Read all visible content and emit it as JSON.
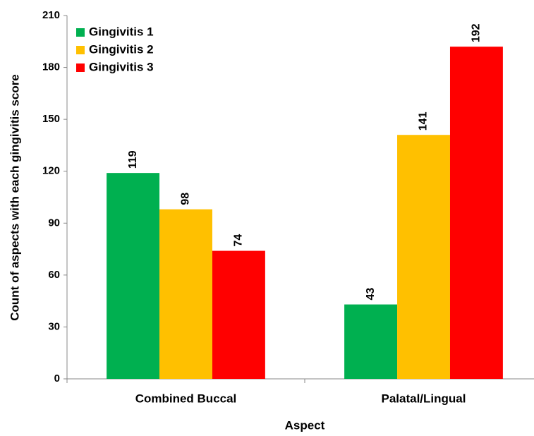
{
  "chart_data": {
    "type": "bar",
    "x_label": "Aspect",
    "y_label": "Count of aspects with each gingivitis score",
    "categories": [
      "Combined Buccal",
      "Palatal/Lingual"
    ],
    "series": [
      {
        "name": "Gingivitis 1",
        "color": "#00b050",
        "values": [
          119,
          43
        ]
      },
      {
        "name": "Gingivitis 2",
        "color": "#ffc000",
        "values": [
          98,
          141
        ]
      },
      {
        "name": "Gingivitis 3",
        "color": "#ff0000",
        "values": [
          74,
          192
        ]
      }
    ],
    "ylim": [
      0,
      210
    ],
    "yticks": [
      0,
      30,
      60,
      90,
      120,
      150,
      180,
      210
    ],
    "grid": false,
    "legend": "upper-left"
  }
}
